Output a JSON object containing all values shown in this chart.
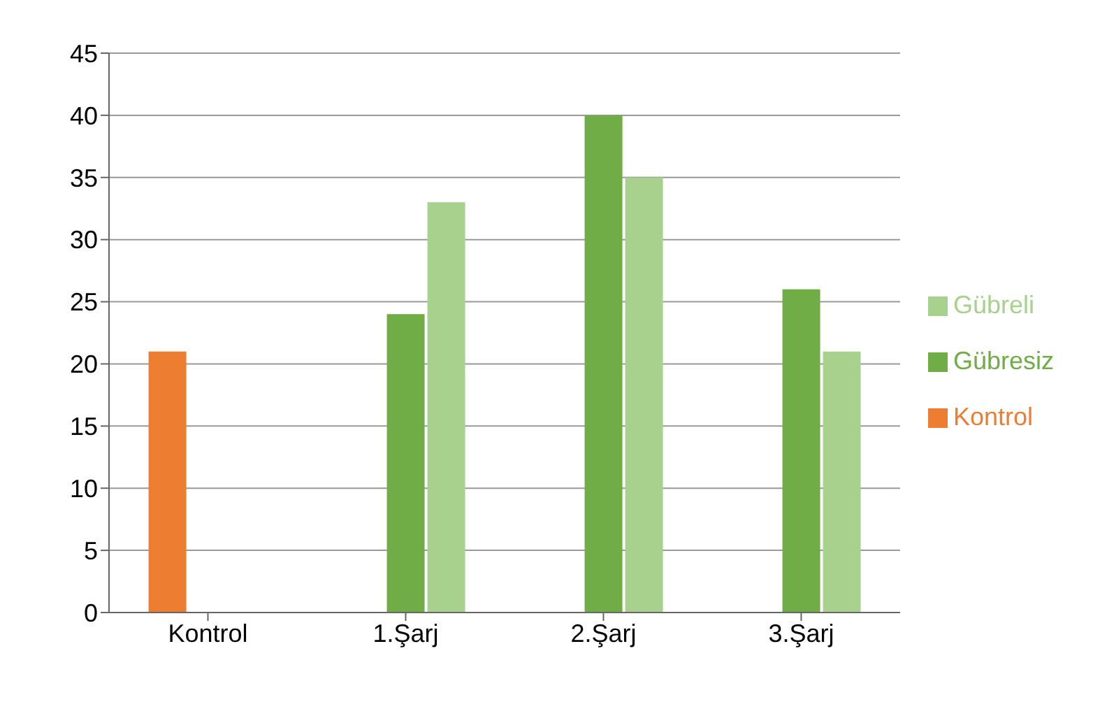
{
  "chart_data": {
    "type": "bar",
    "categories": [
      "Kontrol",
      "1.Şarj",
      "2.Şarj",
      "3.Şarj"
    ],
    "series": [
      {
        "name": "Kontrol",
        "color": "#ed7d31",
        "values": [
          21,
          null,
          null,
          null
        ]
      },
      {
        "name": "Gübresiz",
        "color": "#70ad47",
        "values": [
          null,
          24,
          40,
          26
        ]
      },
      {
        "name": "Gübreli",
        "color": "#a9d18e",
        "values": [
          null,
          33,
          35,
          21
        ]
      }
    ],
    "ylim": [
      0,
      45
    ],
    "yticks": [
      0,
      5,
      10,
      15,
      20,
      25,
      30,
      35,
      40,
      45
    ],
    "grid": "y",
    "legend": "right"
  }
}
